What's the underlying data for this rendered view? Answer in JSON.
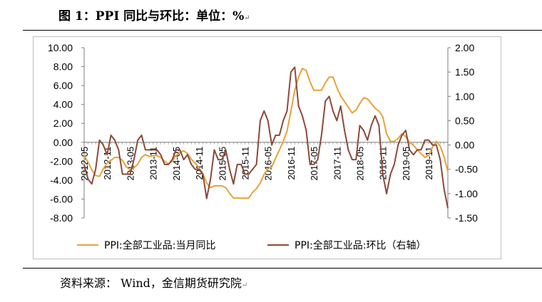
{
  "header": {
    "title": "图 1：PPI 同比与环比：单位：%"
  },
  "footer": {
    "source": "资料来源：  Wind，金信期货研究院"
  },
  "chart_data": {
    "type": "line",
    "title": "",
    "x": [
      "2012-05",
      "2012-06",
      "2012-07",
      "2012-08",
      "2012-09",
      "2012-10",
      "2012-11",
      "2012-12",
      "2013-01",
      "2013-02",
      "2013-03",
      "2013-04",
      "2013-05",
      "2013-06",
      "2013-07",
      "2013-08",
      "2013-09",
      "2013-10",
      "2013-11",
      "2013-12",
      "2014-01",
      "2014-02",
      "2014-03",
      "2014-04",
      "2014-05",
      "2014-06",
      "2014-07",
      "2014-08",
      "2014-09",
      "2014-10",
      "2014-11",
      "2014-12",
      "2015-01",
      "2015-02",
      "2015-03",
      "2015-04",
      "2015-05",
      "2015-06",
      "2015-07",
      "2015-08",
      "2015-09",
      "2015-10",
      "2015-11",
      "2015-12",
      "2016-01",
      "2016-02",
      "2016-03",
      "2016-04",
      "2016-05",
      "2016-06",
      "2016-07",
      "2016-08",
      "2016-09",
      "2016-10",
      "2016-11",
      "2016-12",
      "2017-01",
      "2017-02",
      "2017-03",
      "2017-04",
      "2017-05",
      "2017-06",
      "2017-07",
      "2017-08",
      "2017-09",
      "2017-10",
      "2017-11",
      "2017-12",
      "2018-01",
      "2018-02",
      "2018-03",
      "2018-04",
      "2018-05",
      "2018-06",
      "2018-07",
      "2018-08",
      "2018-09",
      "2018-10",
      "2018-11",
      "2018-12",
      "2019-01",
      "2019-02",
      "2019-03",
      "2019-04",
      "2019-05",
      "2019-06",
      "2019-07",
      "2019-08",
      "2019-09",
      "2019-10",
      "2019-11",
      "2019-12",
      "2020-01",
      "2020-02",
      "2020-03",
      "2020-04"
    ],
    "x_tick_labels": [
      "2012-05",
      "2012-11",
      "2013-05",
      "2013-11",
      "2014-05",
      "2014-11",
      "2015-05",
      "2015-11",
      "2016-05",
      "2016-11",
      "2017-05",
      "2017-11",
      "2018-05",
      "2018-11",
      "2019-05",
      "2019-11"
    ],
    "y_left": {
      "min": -8,
      "max": 10,
      "ticks": [
        "10.00",
        "8.00",
        "6.00",
        "4.00",
        "2.00",
        "0.00",
        "-2.00",
        "-4.00",
        "-6.00",
        "-8.00"
      ]
    },
    "y_right": {
      "min": -1.5,
      "max": 2,
      "ticks": [
        "2.00",
        "1.50",
        "1.00",
        "0.50",
        "0.00",
        "-0.50",
        "-1.00",
        "-1.50"
      ]
    },
    "legend_position": "bottom",
    "series": [
      {
        "name": "PPI:全部工业品:当月同比",
        "axis": "left",
        "color": "#e8a238",
        "values": [
          -1.4,
          -2.1,
          -2.9,
          -3.5,
          -3.6,
          -2.8,
          -2.2,
          -1.9,
          -1.6,
          -1.6,
          -1.9,
          -2.6,
          -2.9,
          -2.7,
          -2.3,
          -1.6,
          -1.3,
          -1.5,
          -1.4,
          -1.4,
          -1.6,
          -2.0,
          -2.3,
          -2.0,
          -1.4,
          -1.1,
          -0.9,
          -1.2,
          -1.8,
          -2.2,
          -2.7,
          -3.3,
          -4.3,
          -4.8,
          -4.6,
          -4.6,
          -4.6,
          -4.8,
          -5.4,
          -5.9,
          -5.9,
          -5.9,
          -5.9,
          -5.9,
          -5.3,
          -4.9,
          -4.3,
          -3.4,
          -2.8,
          -2.6,
          -1.7,
          -0.8,
          0.1,
          1.2,
          3.3,
          5.5,
          6.9,
          7.8,
          7.6,
          6.4,
          5.5,
          5.5,
          5.5,
          6.3,
          6.9,
          6.9,
          5.8,
          4.9,
          4.3,
          3.7,
          3.1,
          3.4,
          4.1,
          4.7,
          4.6,
          4.1,
          3.6,
          3.3,
          2.7,
          0.9,
          0.1,
          0.1,
          0.4,
          0.9,
          0.6,
          0.0,
          -0.3,
          -0.8,
          -1.2,
          -1.6,
          -1.4,
          -0.5,
          0.1,
          -0.4,
          -1.5,
          -3.1
        ]
      },
      {
        "name": "PPI:全部工业品:环比（右轴）",
        "axis": "right",
        "color": "#8b4a3a",
        "values": [
          -0.4,
          -0.7,
          -0.8,
          -0.5,
          0.1,
          0.0,
          -0.2,
          0.2,
          0.1,
          -0.1,
          -0.6,
          -0.6,
          -0.6,
          -0.3,
          0.1,
          0.2,
          -0.1,
          -0.1,
          -0.1,
          -0.1,
          -0.2,
          -0.4,
          -0.4,
          -0.3,
          -0.1,
          -0.1,
          -0.3,
          -0.2,
          -0.4,
          -0.5,
          -0.5,
          -0.6,
          -1.1,
          -0.7,
          -0.1,
          -0.3,
          -0.3,
          -0.1,
          -0.5,
          -0.8,
          -0.4,
          -0.4,
          -0.6,
          -0.6,
          -0.5,
          -0.4,
          0.5,
          0.7,
          0.5,
          0.0,
          0.2,
          0.2,
          0.5,
          0.7,
          1.5,
          1.6,
          0.8,
          0.6,
          0.3,
          -0.4,
          -0.4,
          -0.3,
          0.2,
          0.9,
          1.0,
          0.7,
          0.5,
          0.8,
          0.3,
          -0.1,
          -0.3,
          -0.3,
          0.4,
          0.3,
          0.1,
          0.4,
          0.6,
          0.4,
          -0.6,
          -1.0,
          -0.6,
          -0.4,
          0.0,
          0.2,
          0.3,
          -0.1,
          -0.2,
          -0.1,
          -0.1,
          0.1,
          0.1,
          0.0,
          0.0,
          -0.3,
          -0.9,
          -1.3
        ]
      }
    ]
  }
}
